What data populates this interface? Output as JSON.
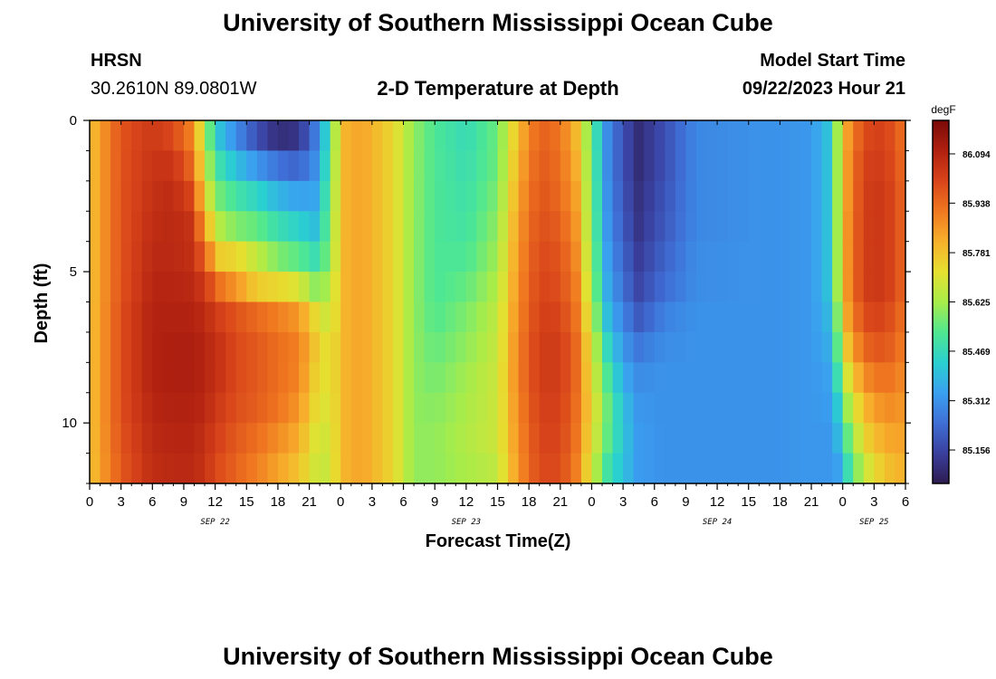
{
  "header": {
    "title": "University of Southern Mississippi Ocean Cube",
    "station": "HRSN",
    "coords": "30.2610N  89.0801W",
    "subtitle": "2-D Temperature at Depth",
    "model_start_label": "Model Start Time",
    "model_start_value": "09/22/2023 Hour 21"
  },
  "footer": {
    "title": "University of Southern Mississippi Ocean Cube"
  },
  "chart_data": {
    "type": "heatmap",
    "title": "2-D Temperature at Depth",
    "xlabel": "Forecast Time(Z)",
    "ylabel": "Depth (ft)",
    "x_range_hours": [
      0,
      78
    ],
    "y_range_ft": [
      0,
      12
    ],
    "y_reversed": true,
    "x_ticks": [
      "0",
      "3",
      "6",
      "9",
      "12",
      "15",
      "18",
      "21",
      "0",
      "3",
      "6",
      "9",
      "12",
      "15",
      "18",
      "21",
      "0",
      "3",
      "6",
      "9",
      "12",
      "15",
      "18",
      "21",
      "0",
      "3",
      "6"
    ],
    "y_ticks": [
      "0",
      "5",
      "10"
    ],
    "y_tick_values": [
      0,
      5,
      10
    ],
    "date_labels": [
      {
        "label": "SEP 22",
        "hour": 12
      },
      {
        "label": "SEP 23",
        "hour": 36
      },
      {
        "label": "SEP 24",
        "hour": 60
      },
      {
        "label": "SEP 25",
        "hour": 75
      }
    ],
    "colorbar": {
      "unit": "degF",
      "ticks": [
        "86.094",
        "85.938",
        "85.781",
        "85.625",
        "85.469",
        "85.312",
        "85.156"
      ],
      "tick_values": [
        86.094,
        85.938,
        85.781,
        85.625,
        85.469,
        85.312,
        85.156
      ],
      "range": [
        85.05,
        86.2
      ],
      "colors": [
        "#2d1b4e",
        "#3a3f9e",
        "#3f6fd6",
        "#3aa0f0",
        "#2ad0d0",
        "#50e890",
        "#a8ec4a",
        "#e6e030",
        "#f7b02c",
        "#f07820",
        "#d8441a",
        "#b02010",
        "#7a0a08"
      ]
    },
    "depths_ft": [
      0,
      1,
      2,
      3,
      4,
      5,
      6,
      7,
      8,
      9,
      10,
      11,
      12
    ],
    "columns": [
      {
        "hour": 0,
        "v": [
          85.78,
          85.78,
          85.78,
          85.78,
          85.78,
          85.78,
          85.78,
          85.78,
          85.78,
          85.78,
          85.78,
          85.78,
          85.78
        ]
      },
      {
        "hour": 3,
        "v": [
          85.98,
          85.98,
          85.98,
          85.98,
          85.98,
          85.98,
          85.99,
          85.99,
          85.99,
          85.99,
          85.98,
          85.97,
          85.96
        ]
      },
      {
        "hour": 6,
        "v": [
          86.04,
          86.05,
          86.06,
          86.07,
          86.08,
          86.09,
          86.1,
          86.1,
          86.1,
          86.09,
          86.08,
          86.07,
          86.05
        ]
      },
      {
        "hour": 8,
        "v": [
          86.0,
          86.05,
          86.07,
          86.08,
          86.08,
          86.09,
          86.1,
          86.11,
          86.11,
          86.1,
          86.09,
          86.08,
          86.06
        ]
      },
      {
        "hour": 10,
        "v": [
          85.88,
          85.93,
          86.0,
          86.05,
          86.06,
          86.08,
          86.1,
          86.11,
          86.11,
          86.1,
          86.09,
          86.08,
          86.06
        ]
      },
      {
        "hour": 11,
        "v": [
          85.62,
          85.66,
          85.72,
          85.82,
          85.94,
          86.03,
          86.07,
          86.09,
          86.09,
          86.08,
          86.06,
          86.05,
          86.03
        ]
      },
      {
        "hour": 12.5,
        "v": [
          85.4,
          85.48,
          85.56,
          85.64,
          85.76,
          85.92,
          86.02,
          86.05,
          86.05,
          86.03,
          86.01,
          85.99,
          85.97
        ]
      },
      {
        "hour": 14,
        "v": [
          85.3,
          85.4,
          85.5,
          85.58,
          85.74,
          85.86,
          85.98,
          86.0,
          86.0,
          85.99,
          85.97,
          85.95,
          85.93
        ]
      },
      {
        "hour": 16,
        "v": [
          85.18,
          85.32,
          85.45,
          85.55,
          85.66,
          85.76,
          85.94,
          85.97,
          85.97,
          85.96,
          85.93,
          85.9,
          85.87
        ]
      },
      {
        "hour": 18,
        "v": [
          85.1,
          85.25,
          85.38,
          85.48,
          85.58,
          85.74,
          85.9,
          85.93,
          85.93,
          85.92,
          85.88,
          85.84,
          85.8
        ]
      },
      {
        "hour": 20,
        "v": [
          85.12,
          85.22,
          85.34,
          85.44,
          85.54,
          85.7,
          85.86,
          85.9,
          85.89,
          85.86,
          85.82,
          85.78,
          85.74
        ]
      },
      {
        "hour": 21.5,
        "v": [
          85.26,
          85.3,
          85.35,
          85.4,
          85.48,
          85.6,
          85.74,
          85.78,
          85.76,
          85.74,
          85.71,
          85.69,
          85.66
        ]
      },
      {
        "hour": 23,
        "v": [
          85.5,
          85.52,
          85.54,
          85.56,
          85.58,
          85.63,
          85.66,
          85.7,
          85.7,
          85.69,
          85.68,
          85.67,
          85.66
        ]
      },
      {
        "hour": 24,
        "v": [
          85.8,
          85.8,
          85.8,
          85.8,
          85.8,
          85.8,
          85.8,
          85.8,
          85.8,
          85.8,
          85.8,
          85.8,
          85.8
        ]
      },
      {
        "hour": 26,
        "v": [
          85.84,
          85.84,
          85.84,
          85.84,
          85.84,
          85.84,
          85.84,
          85.84,
          85.84,
          85.84,
          85.84,
          85.84,
          85.84
        ]
      },
      {
        "hour": 29,
        "v": [
          85.74,
          85.74,
          85.74,
          85.74,
          85.74,
          85.74,
          85.74,
          85.74,
          85.74,
          85.74,
          85.74,
          85.74,
          85.74
        ]
      },
      {
        "hour": 31,
        "v": [
          85.6,
          85.6,
          85.6,
          85.6,
          85.6,
          85.6,
          85.6,
          85.6,
          85.6,
          85.6,
          85.6,
          85.6,
          85.6
        ]
      },
      {
        "hour": 33,
        "v": [
          85.52,
          85.52,
          85.52,
          85.52,
          85.52,
          85.52,
          85.53,
          85.55,
          85.57,
          85.59,
          85.6,
          85.6,
          85.6
        ]
      },
      {
        "hour": 36,
        "v": [
          85.47,
          85.48,
          85.49,
          85.5,
          85.52,
          85.55,
          85.58,
          85.6,
          85.62,
          85.63,
          85.64,
          85.63,
          85.62
        ]
      },
      {
        "hour": 39,
        "v": [
          85.56,
          85.56,
          85.58,
          85.6,
          85.62,
          85.64,
          85.66,
          85.67,
          85.68,
          85.68,
          85.68,
          85.66,
          85.64
        ]
      },
      {
        "hour": 41,
        "v": [
          85.8,
          85.82,
          85.84,
          85.86,
          85.87,
          85.88,
          85.89,
          85.9,
          85.9,
          85.89,
          85.88,
          85.87,
          85.86
        ]
      },
      {
        "hour": 43,
        "v": [
          85.96,
          85.97,
          85.98,
          85.99,
          86.0,
          86.01,
          86.02,
          86.03,
          86.03,
          86.02,
          86.01,
          86.0,
          85.99
        ]
      },
      {
        "hour": 45,
        "v": [
          85.92,
          85.93,
          85.94,
          85.96,
          85.98,
          85.99,
          86.01,
          86.03,
          86.03,
          86.02,
          86.01,
          86.0,
          85.98
        ]
      },
      {
        "hour": 46.5,
        "v": [
          85.8,
          85.82,
          85.84,
          85.86,
          85.88,
          85.9,
          85.92,
          85.94,
          85.94,
          85.93,
          85.92,
          85.9,
          85.86
        ]
      },
      {
        "hour": 48,
        "v": [
          85.55,
          85.56,
          85.57,
          85.58,
          85.6,
          85.62,
          85.66,
          85.7,
          85.72,
          85.74,
          85.72,
          85.69,
          85.64
        ]
      },
      {
        "hour": 49.5,
        "v": [
          85.3,
          85.3,
          85.31,
          85.32,
          85.34,
          85.36,
          85.4,
          85.46,
          85.52,
          85.56,
          85.55,
          85.5,
          85.44
        ]
      },
      {
        "hour": 51,
        "v": [
          85.18,
          85.18,
          85.19,
          85.2,
          85.22,
          85.24,
          85.28,
          85.32,
          85.36,
          85.4,
          85.41,
          85.4,
          85.36
        ]
      },
      {
        "hour": 52.5,
        "v": [
          85.1,
          85.1,
          85.11,
          85.12,
          85.14,
          85.16,
          85.2,
          85.26,
          85.3,
          85.32,
          85.33,
          85.33,
          85.31
        ]
      },
      {
        "hour": 55,
        "v": [
          85.18,
          85.18,
          85.19,
          85.2,
          85.22,
          85.24,
          85.28,
          85.3,
          85.31,
          85.31,
          85.31,
          85.31,
          85.31
        ]
      },
      {
        "hour": 58,
        "v": [
          85.29,
          85.29,
          85.29,
          85.29,
          85.3,
          85.3,
          85.31,
          85.31,
          85.31,
          85.31,
          85.31,
          85.31,
          85.31
        ]
      },
      {
        "hour": 64,
        "v": [
          85.31,
          85.31,
          85.31,
          85.31,
          85.31,
          85.31,
          85.31,
          85.31,
          85.31,
          85.31,
          85.31,
          85.31,
          85.31
        ]
      },
      {
        "hour": 69,
        "v": [
          85.32,
          85.32,
          85.32,
          85.32,
          85.32,
          85.32,
          85.32,
          85.32,
          85.32,
          85.32,
          85.32,
          85.32,
          85.32
        ]
      },
      {
        "hour": 70.5,
        "v": [
          85.4,
          85.4,
          85.4,
          85.4,
          85.4,
          85.4,
          85.38,
          85.36,
          85.34,
          85.33,
          85.32,
          85.32,
          85.31
        ]
      },
      {
        "hour": 71.5,
        "v": [
          85.62,
          85.62,
          85.62,
          85.62,
          85.62,
          85.62,
          85.58,
          85.54,
          85.48,
          85.42,
          85.38,
          85.34,
          85.32
        ]
      },
      {
        "hour": 72.5,
        "v": [
          85.85,
          85.86,
          85.86,
          85.87,
          85.87,
          85.87,
          85.84,
          85.78,
          85.7,
          85.62,
          85.55,
          85.48,
          85.42
        ]
      },
      {
        "hour": 74,
        "v": [
          86.0,
          86.02,
          86.03,
          86.03,
          86.03,
          86.03,
          86.0,
          85.95,
          85.88,
          85.8,
          85.74,
          85.67,
          85.58
        ]
      },
      {
        "hour": 76,
        "v": [
          86.02,
          86.03,
          86.04,
          86.04,
          86.04,
          86.04,
          86.01,
          85.98,
          85.93,
          85.88,
          85.83,
          85.78,
          85.72
        ]
      },
      {
        "hour": 78,
        "v": [
          85.92,
          85.93,
          85.94,
          85.94,
          85.94,
          85.94,
          85.92,
          85.9,
          85.88,
          85.86,
          85.84,
          85.82,
          85.8
        ]
      }
    ]
  }
}
